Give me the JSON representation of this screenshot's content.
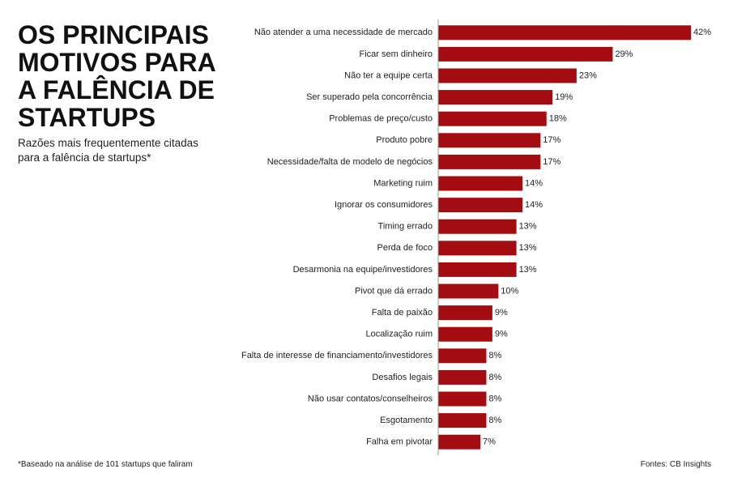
{
  "chart_data": {
    "type": "hbar",
    "title": "OS PRINCIPAIS MOTIVOS PARA A FALÊNCIA DE STARTUPS",
    "subtitle": "Razões mais frequentemente citadas para a falência de startups*",
    "footnote": "*Baseado na análise de 101 startups que faliram",
    "source": "Fontes: CB Insights",
    "categories": [
      "Não atender a uma necessidade de mercado",
      "Ficar sem dinheiro",
      "Não ter a equipe certa",
      "Ser superado pela concorrência",
      "Problemas de preço/custo",
      "Produto pobre",
      "Necessidade/falta de modelo de negócios",
      "Marketing ruim",
      "Ignorar os consumidores",
      "Timing errado",
      "Perda de foco",
      "Desarmonia na equipe/investidores",
      "Pivot que dá errado",
      "Falta de paixão",
      "Localização ruim",
      "Falta de interesse de financiamento/investidores",
      "Desafios legais",
      "Não usar contatos/conselheiros",
      "Esgotamento",
      "Falha em pivotar"
    ],
    "values": [
      42,
      29,
      23,
      19,
      18,
      17,
      17,
      14,
      14,
      13,
      13,
      13,
      10,
      9,
      9,
      8,
      8,
      8,
      8,
      7
    ],
    "value_labels": [
      "42%",
      "29%",
      "23%",
      "19%",
      "18%",
      "17%",
      "17%",
      "14%",
      "14%",
      "13%",
      "13%",
      "13%",
      "10%",
      "9%",
      "9%",
      "8%",
      "8%",
      "8%",
      "8%",
      "7%"
    ],
    "color": "#a30d12"
  }
}
